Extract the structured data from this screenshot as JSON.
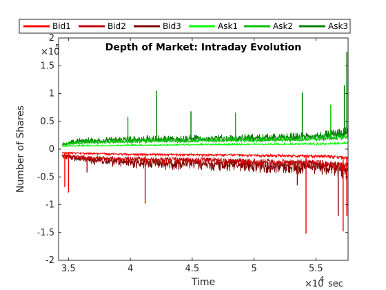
{
  "chart_data": {
    "type": "line",
    "title": "Depth of Market: Intraday Evolution",
    "xlabel": "Time",
    "ylabel": "Number of Shares",
    "x_exponent_label": "×10",
    "x_exponent_power": "4",
    "x_exponent_unit": "sec",
    "y_exponent_label": "×10",
    "y_exponent_power": "5",
    "xlim": [
      34200,
      57600
    ],
    "ylim": [
      -200000,
      200000
    ],
    "x_scale_factor": 10000,
    "y_scale_factor": 100000,
    "x_ticks": [
      35000,
      40000,
      45000,
      50000,
      55000
    ],
    "x_tick_labels": [
      "3.5",
      "4",
      "4.5",
      "5",
      "5.5"
    ],
    "y_ticks": [
      -200000,
      -150000,
      -100000,
      -50000,
      0,
      50000,
      100000,
      150000,
      200000
    ],
    "y_tick_labels": [
      "-2",
      "-1.5",
      "-1",
      "-0.5",
      "0",
      "0.5",
      "1",
      "1.5",
      "2"
    ],
    "grid": false,
    "legend_position": "top (outside, horizontal)",
    "series": [
      {
        "name": "Bid1",
        "color": "#ff0000",
        "x": [
          34500,
          36000,
          38000,
          40000,
          42000,
          44000,
          46000,
          48000,
          50000,
          52000,
          54000,
          55500,
          57000,
          57600
        ],
        "y": [
          -6000,
          -7000,
          -8000,
          -9000,
          -9000,
          -9500,
          -10000,
          -10000,
          -11000,
          -11000,
          -12000,
          -12000,
          -14000,
          -15000
        ]
      },
      {
        "name": "Bid2",
        "color": "#c00000",
        "x": [
          34500,
          36000,
          38000,
          40000,
          42000,
          44000,
          46000,
          48000,
          50000,
          52000,
          54000,
          55500,
          57000,
          57600
        ],
        "y": [
          -12000,
          -14000,
          -16000,
          -17000,
          -18000,
          -18000,
          -19000,
          -20000,
          -21000,
          -22000,
          -23000,
          -24000,
          -28000,
          -30000
        ]
      },
      {
        "name": "Bid3",
        "color": "#800000",
        "x": [
          34500,
          36000,
          38000,
          40000,
          42000,
          44000,
          46000,
          48000,
          50000,
          52000,
          54000,
          55500,
          57000,
          57600
        ],
        "y": [
          -10000,
          -16000,
          -20000,
          -22000,
          -24000,
          -24000,
          -25000,
          -26000,
          -28000,
          -28000,
          -30000,
          -31000,
          -34000,
          -36000
        ]
      },
      {
        "name": "Ask1",
        "color": "#00ff00",
        "x": [
          34500,
          36000,
          38000,
          40000,
          42000,
          44000,
          46000,
          48000,
          50000,
          52000,
          54000,
          55500,
          57000,
          57600
        ],
        "y": [
          5000,
          6000,
          6000,
          7000,
          7000,
          7500,
          8000,
          8000,
          8500,
          8500,
          9000,
          9000,
          10000,
          11000
        ]
      },
      {
        "name": "Ask2",
        "color": "#00c000",
        "x": [
          34500,
          36000,
          38000,
          40000,
          42000,
          44000,
          46000,
          48000,
          50000,
          52000,
          54000,
          55500,
          57000,
          57600
        ],
        "y": [
          8000,
          11000,
          12000,
          13000,
          14000,
          14000,
          15000,
          15000,
          16000,
          16000,
          17000,
          18000,
          20000,
          22000
        ]
      },
      {
        "name": "Ask3",
        "color": "#008000",
        "x": [
          34500,
          36000,
          38000,
          40000,
          42000,
          44000,
          46000,
          48000,
          50000,
          52000,
          54000,
          55500,
          57000,
          57600
        ],
        "y": [
          8000,
          14000,
          15000,
          16000,
          17000,
          17000,
          18000,
          18000,
          19000,
          19000,
          21000,
          22000,
          25000,
          28000
        ]
      }
    ],
    "spikes": [
      {
        "series": "Bid1",
        "x": 34700,
        "y": -68000
      },
      {
        "series": "Bid1",
        "x": 35000,
        "y": -78000
      },
      {
        "series": "Bid1",
        "x": 41200,
        "y": -98000
      },
      {
        "series": "Bid1",
        "x": 54200,
        "y": -152000
      },
      {
        "series": "Bid1",
        "x": 57200,
        "y": -148000
      },
      {
        "series": "Bid1",
        "x": 57500,
        "y": -120000
      },
      {
        "series": "Bid2",
        "x": 36500,
        "y": -42000
      },
      {
        "series": "Bid2",
        "x": 53500,
        "y": -65000
      },
      {
        "series": "Bid3",
        "x": 56800,
        "y": -120000
      },
      {
        "series": "Ask3",
        "x": 42100,
        "y": 105000
      },
      {
        "series": "Ask3",
        "x": 44900,
        "y": 68000
      },
      {
        "series": "Ask3",
        "x": 53900,
        "y": 102000
      },
      {
        "series": "Ask3",
        "x": 57500,
        "y": 175000
      },
      {
        "series": "Ask3",
        "x": 57300,
        "y": 115000
      },
      {
        "series": "Ask2",
        "x": 39800,
        "y": 58000
      },
      {
        "series": "Ask2",
        "x": 48500,
        "y": 66000
      },
      {
        "series": "Ask2",
        "x": 56200,
        "y": 80000
      }
    ]
  }
}
